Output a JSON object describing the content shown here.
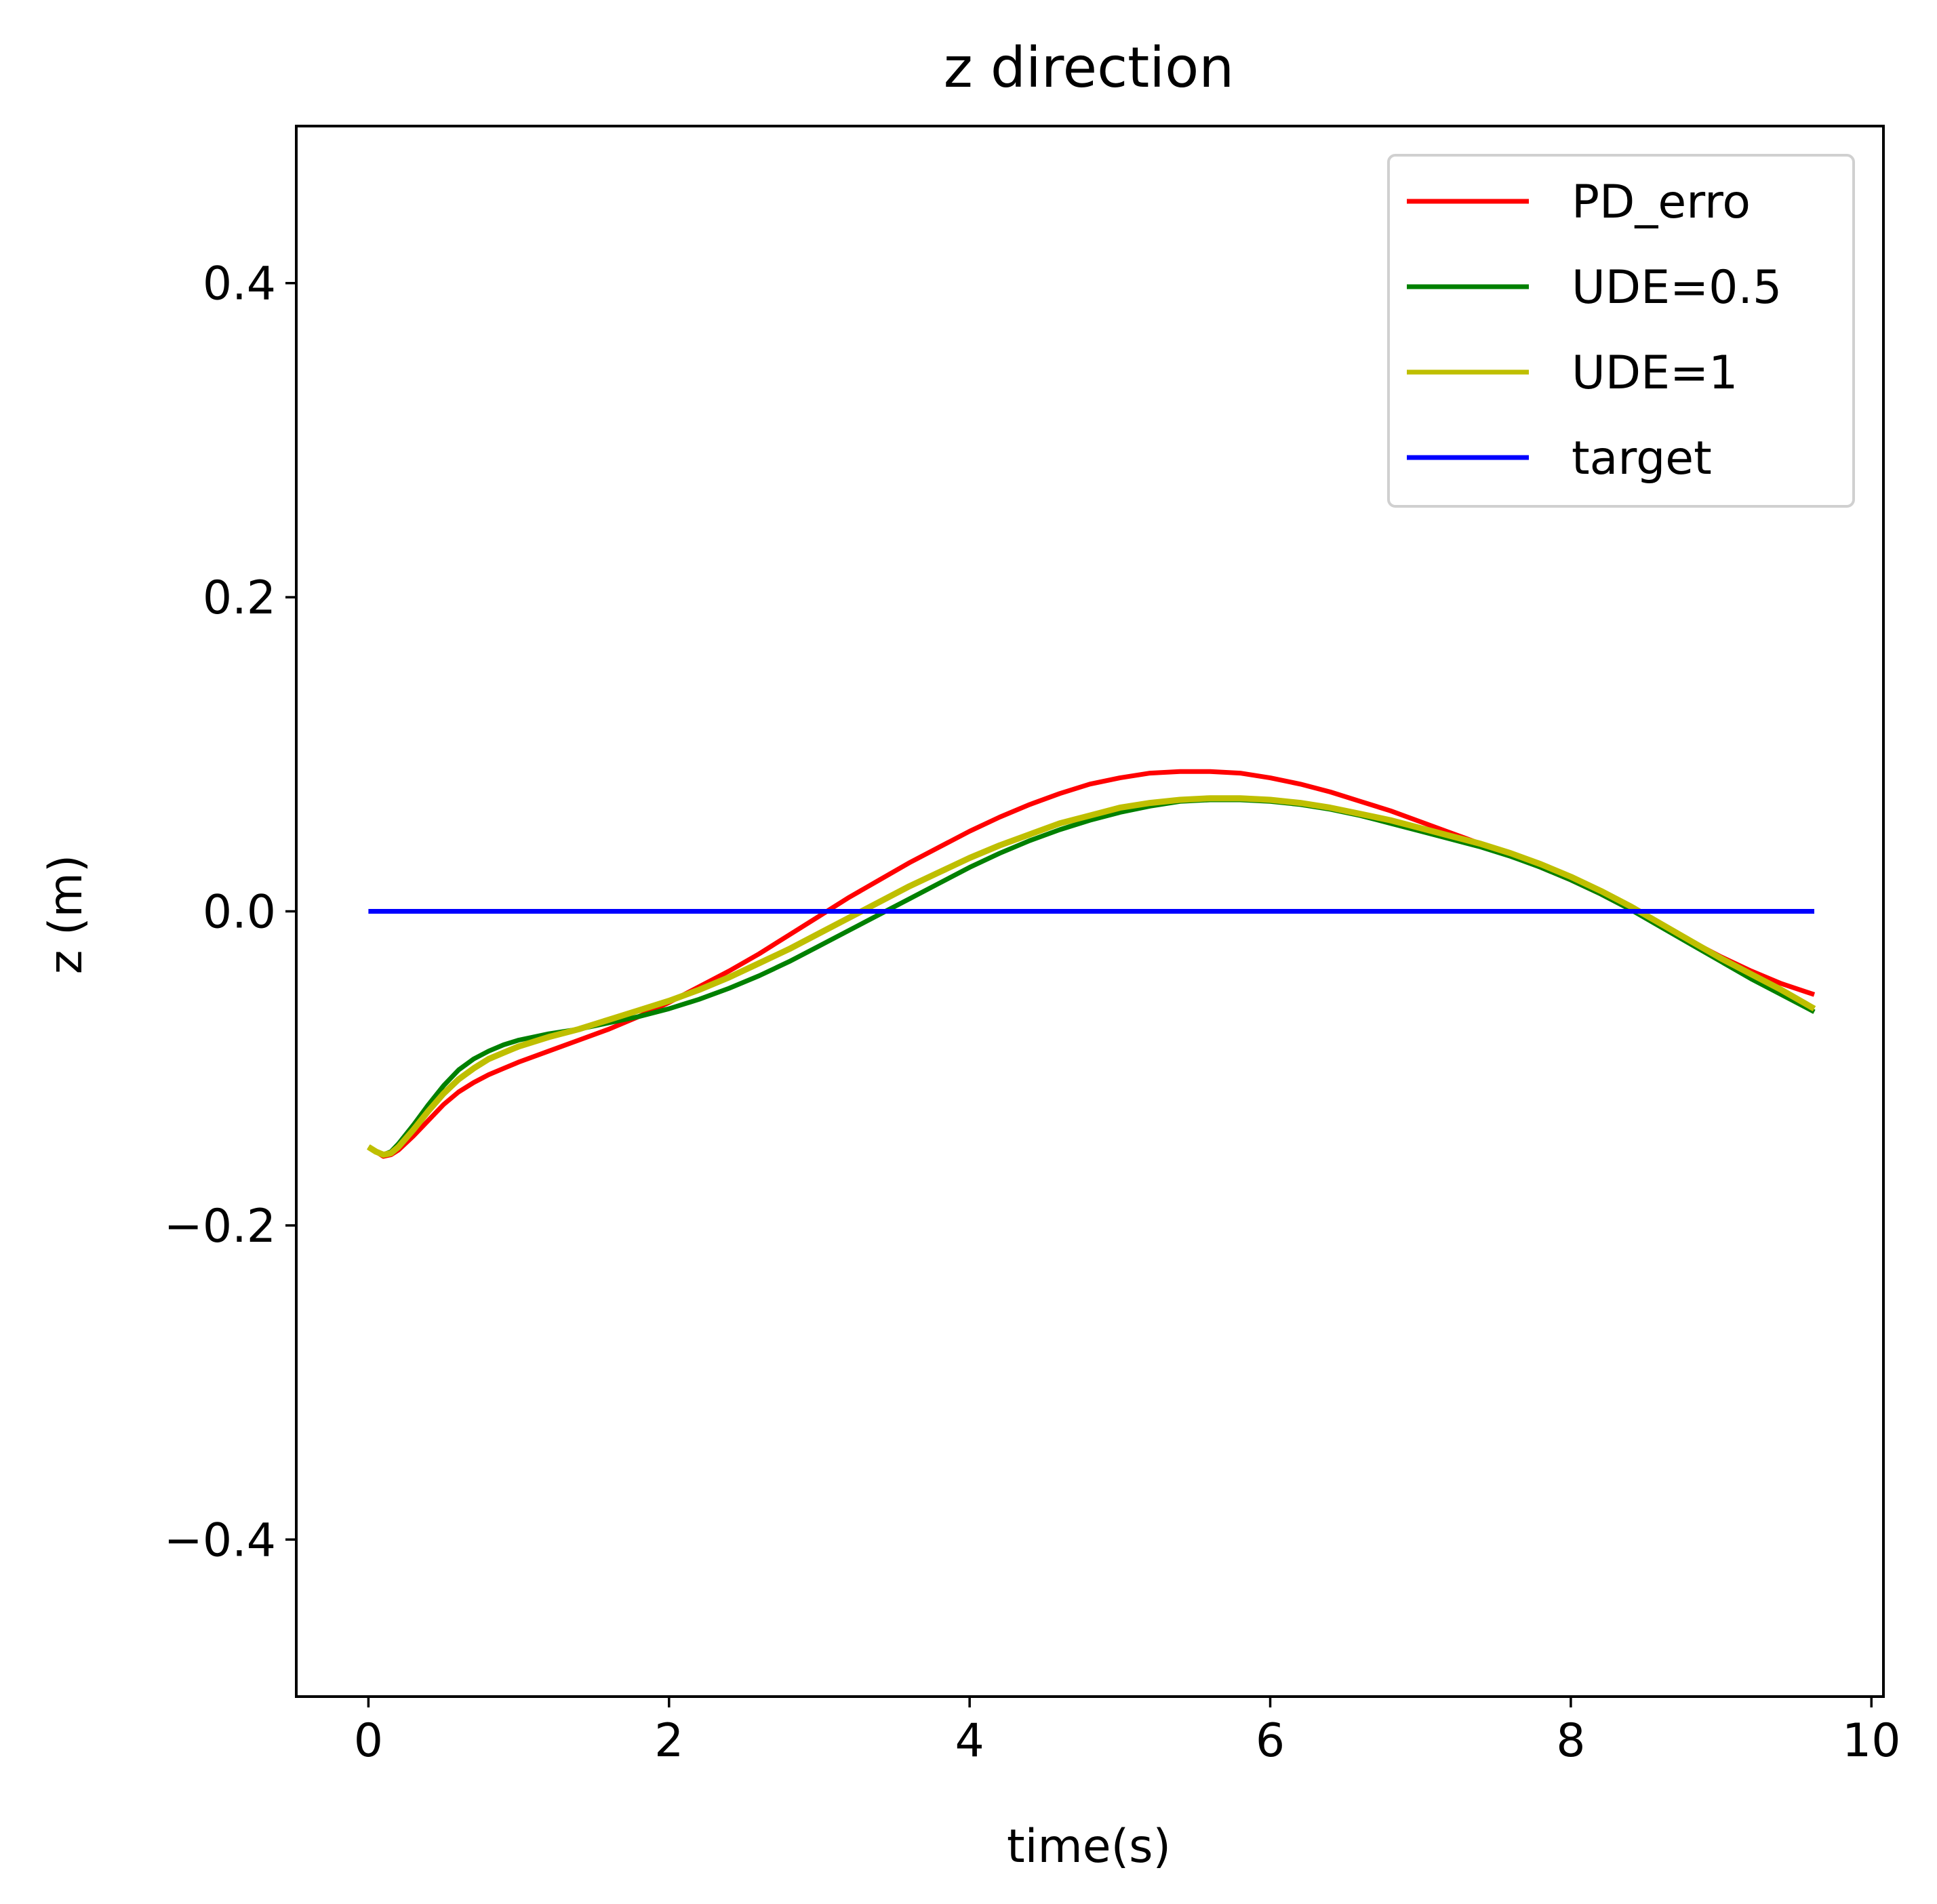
{
  "chart_data": {
    "type": "line",
    "title": "z direction",
    "xlabel": "time(s)",
    "ylabel": "z (m)",
    "xlim": [
      -0.48,
      10.08
    ],
    "ylim": [
      -0.5,
      0.5
    ],
    "xticks": [
      0,
      2,
      4,
      6,
      8,
      10
    ],
    "yticks": [
      -0.4,
      -0.2,
      0.0,
      0.2,
      0.4
    ],
    "xtick_labels": [
      "0",
      "2",
      "4",
      "6",
      "8",
      "10"
    ],
    "ytick_labels": [
      "−0.4",
      "−0.2",
      "0.0",
      "0.2",
      "0.4"
    ],
    "grid": false,
    "legend_position": "top-right",
    "series": [
      {
        "name": "PD_erro",
        "color": "#ff0000",
        "x": [
          0,
          0.05,
          0.1,
          0.15,
          0.2,
          0.3,
          0.4,
          0.5,
          0.6,
          0.7,
          0.8,
          0.9,
          1.0,
          1.2,
          1.4,
          1.6,
          1.8,
          2.0,
          2.2,
          2.4,
          2.6,
          2.8,
          3.0,
          3.2,
          3.4,
          3.6,
          3.8,
          4.0,
          4.2,
          4.4,
          4.6,
          4.8,
          5.0,
          5.2,
          5.4,
          5.6,
          5.8,
          6.0,
          6.2,
          6.4,
          6.6,
          6.8,
          7.0,
          7.2,
          7.4,
          7.6,
          7.8,
          8.0,
          8.2,
          8.4,
          8.6,
          8.8,
          9.0,
          9.2,
          9.4,
          9.62
        ],
        "y": [
          -0.15,
          -0.153,
          -0.156,
          -0.155,
          -0.152,
          -0.143,
          -0.133,
          -0.123,
          -0.115,
          -0.109,
          -0.104,
          -0.1,
          -0.096,
          -0.089,
          -0.082,
          -0.075,
          -0.067,
          -0.058,
          -0.048,
          -0.038,
          -0.027,
          -0.015,
          -0.003,
          0.009,
          0.02,
          0.031,
          0.041,
          0.051,
          0.06,
          0.068,
          0.075,
          0.081,
          0.085,
          0.088,
          0.089,
          0.089,
          0.088,
          0.085,
          0.081,
          0.076,
          0.07,
          0.064,
          0.057,
          0.05,
          0.043,
          0.036,
          0.028,
          0.02,
          0.011,
          0.001,
          -0.009,
          -0.019,
          -0.029,
          -0.038,
          -0.046,
          -0.053
        ]
      },
      {
        "name": "UDE=0.5",
        "color": "#008000",
        "x": [
          0,
          0.05,
          0.1,
          0.15,
          0.2,
          0.3,
          0.4,
          0.5,
          0.6,
          0.7,
          0.8,
          0.9,
          1.0,
          1.2,
          1.4,
          1.6,
          1.8,
          2.0,
          2.2,
          2.4,
          2.6,
          2.8,
          3.0,
          3.2,
          3.4,
          3.6,
          3.8,
          4.0,
          4.2,
          4.4,
          4.6,
          4.8,
          5.0,
          5.2,
          5.4,
          5.6,
          5.8,
          6.0,
          6.2,
          6.4,
          6.6,
          6.8,
          7.0,
          7.2,
          7.4,
          7.6,
          7.8,
          8.0,
          8.2,
          8.4,
          8.6,
          8.8,
          9.0,
          9.2,
          9.4,
          9.62
        ],
        "y": [
          -0.15,
          -0.153,
          -0.155,
          -0.153,
          -0.148,
          -0.136,
          -0.123,
          -0.111,
          -0.101,
          -0.094,
          -0.089,
          -0.085,
          -0.082,
          -0.078,
          -0.075,
          -0.071,
          -0.067,
          -0.062,
          -0.056,
          -0.049,
          -0.041,
          -0.032,
          -0.022,
          -0.012,
          -0.002,
          0.008,
          0.018,
          0.028,
          0.037,
          0.045,
          0.052,
          0.058,
          0.063,
          0.067,
          0.07,
          0.071,
          0.071,
          0.07,
          0.068,
          0.065,
          0.061,
          0.056,
          0.051,
          0.046,
          0.041,
          0.035,
          0.028,
          0.02,
          0.011,
          0.001,
          -0.01,
          -0.021,
          -0.032,
          -0.043,
          -0.053,
          -0.064
        ]
      },
      {
        "name": "UDE=1",
        "color": "#bfbf00",
        "x": [
          0,
          0.05,
          0.1,
          0.15,
          0.2,
          0.3,
          0.4,
          0.5,
          0.6,
          0.7,
          0.8,
          0.9,
          1.0,
          1.2,
          1.4,
          1.6,
          1.8,
          2.0,
          2.2,
          2.4,
          2.6,
          2.8,
          3.0,
          3.2,
          3.4,
          3.6,
          3.8,
          4.0,
          4.2,
          4.4,
          4.6,
          4.8,
          5.0,
          5.2,
          5.4,
          5.6,
          5.8,
          6.0,
          6.2,
          6.4,
          6.6,
          6.8,
          7.0,
          7.2,
          7.4,
          7.6,
          7.8,
          8.0,
          8.2,
          8.4,
          8.6,
          8.8,
          9.0,
          9.2,
          9.4,
          9.62
        ],
        "y": [
          -0.15,
          -0.153,
          -0.155,
          -0.154,
          -0.15,
          -0.139,
          -0.127,
          -0.116,
          -0.107,
          -0.1,
          -0.094,
          -0.09,
          -0.086,
          -0.08,
          -0.075,
          -0.069,
          -0.063,
          -0.057,
          -0.05,
          -0.042,
          -0.033,
          -0.024,
          -0.014,
          -0.004,
          0.006,
          0.016,
          0.025,
          0.034,
          0.042,
          0.049,
          0.056,
          0.061,
          0.066,
          0.069,
          0.071,
          0.072,
          0.072,
          0.071,
          0.069,
          0.066,
          0.062,
          0.058,
          0.053,
          0.048,
          0.043,
          0.037,
          0.03,
          0.022,
          0.013,
          0.003,
          -0.008,
          -0.019,
          -0.03,
          -0.04,
          -0.05,
          -0.062
        ]
      },
      {
        "name": "target",
        "color": "#0000ff",
        "x": [
          0,
          9.62
        ],
        "y": [
          0,
          0
        ]
      }
    ]
  }
}
